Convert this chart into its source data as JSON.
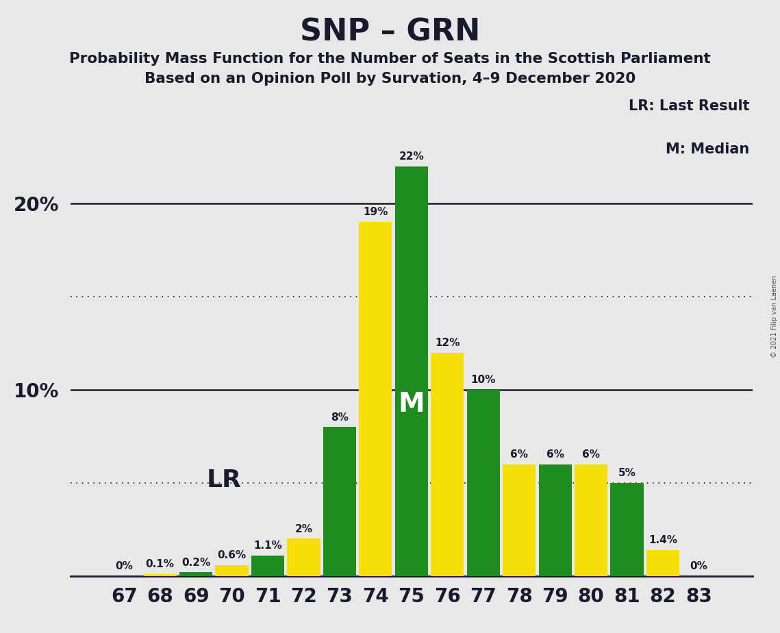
{
  "title": "SNP – GRN",
  "subtitle1": "Probability Mass Function for the Number of Seats in the Scottish Parliament",
  "subtitle2": "Based on an Opinion Poll by Survation, 4–9 December 2020",
  "copyright": "© 2021 Filip van Laenen",
  "seats": [
    67,
    68,
    69,
    70,
    71,
    72,
    73,
    74,
    75,
    76,
    77,
    78,
    79,
    80,
    81,
    82,
    83
  ],
  "values": [
    0.0,
    0.1,
    0.2,
    0.6,
    1.1,
    2.0,
    8.0,
    19.0,
    22.0,
    12.0,
    10.0,
    6.0,
    6.0,
    6.0,
    5.0,
    1.4,
    0.0
  ],
  "colors": [
    "#f5de0a",
    "#f5de0a",
    "#1e8c1e",
    "#f5de0a",
    "#1e8c1e",
    "#f5de0a",
    "#1e8c1e",
    "#f5de0a",
    "#1e8c1e",
    "#f5de0a",
    "#1e8c1e",
    "#f5de0a",
    "#1e8c1e",
    "#f5de0a",
    "#1e8c1e",
    "#f5de0a",
    "#1e8c1e"
  ],
  "labels": [
    "0%",
    "0.1%",
    "0.2%",
    "0.6%",
    "1.1%",
    "2%",
    "8%",
    "19%",
    "22%",
    "12%",
    "10%",
    "6%",
    "6%",
    "6%",
    "5%",
    "1.4%",
    "0%"
  ],
  "lr_seat": 69,
  "lr_label": "LR",
  "median_seat": 75,
  "median_label": "M",
  "legend_lr": "LR: Last Result",
  "legend_m": "M: Median",
  "background_color": "#e8e8e8",
  "green_color": "#1e8c1e",
  "yellow_color": "#f5de0a",
  "dotted_lines": [
    5.0,
    15.0
  ],
  "solid_lines": [
    10.0,
    20.0
  ],
  "ylim": [
    0,
    26
  ],
  "xlim": [
    65.5,
    84.5
  ]
}
